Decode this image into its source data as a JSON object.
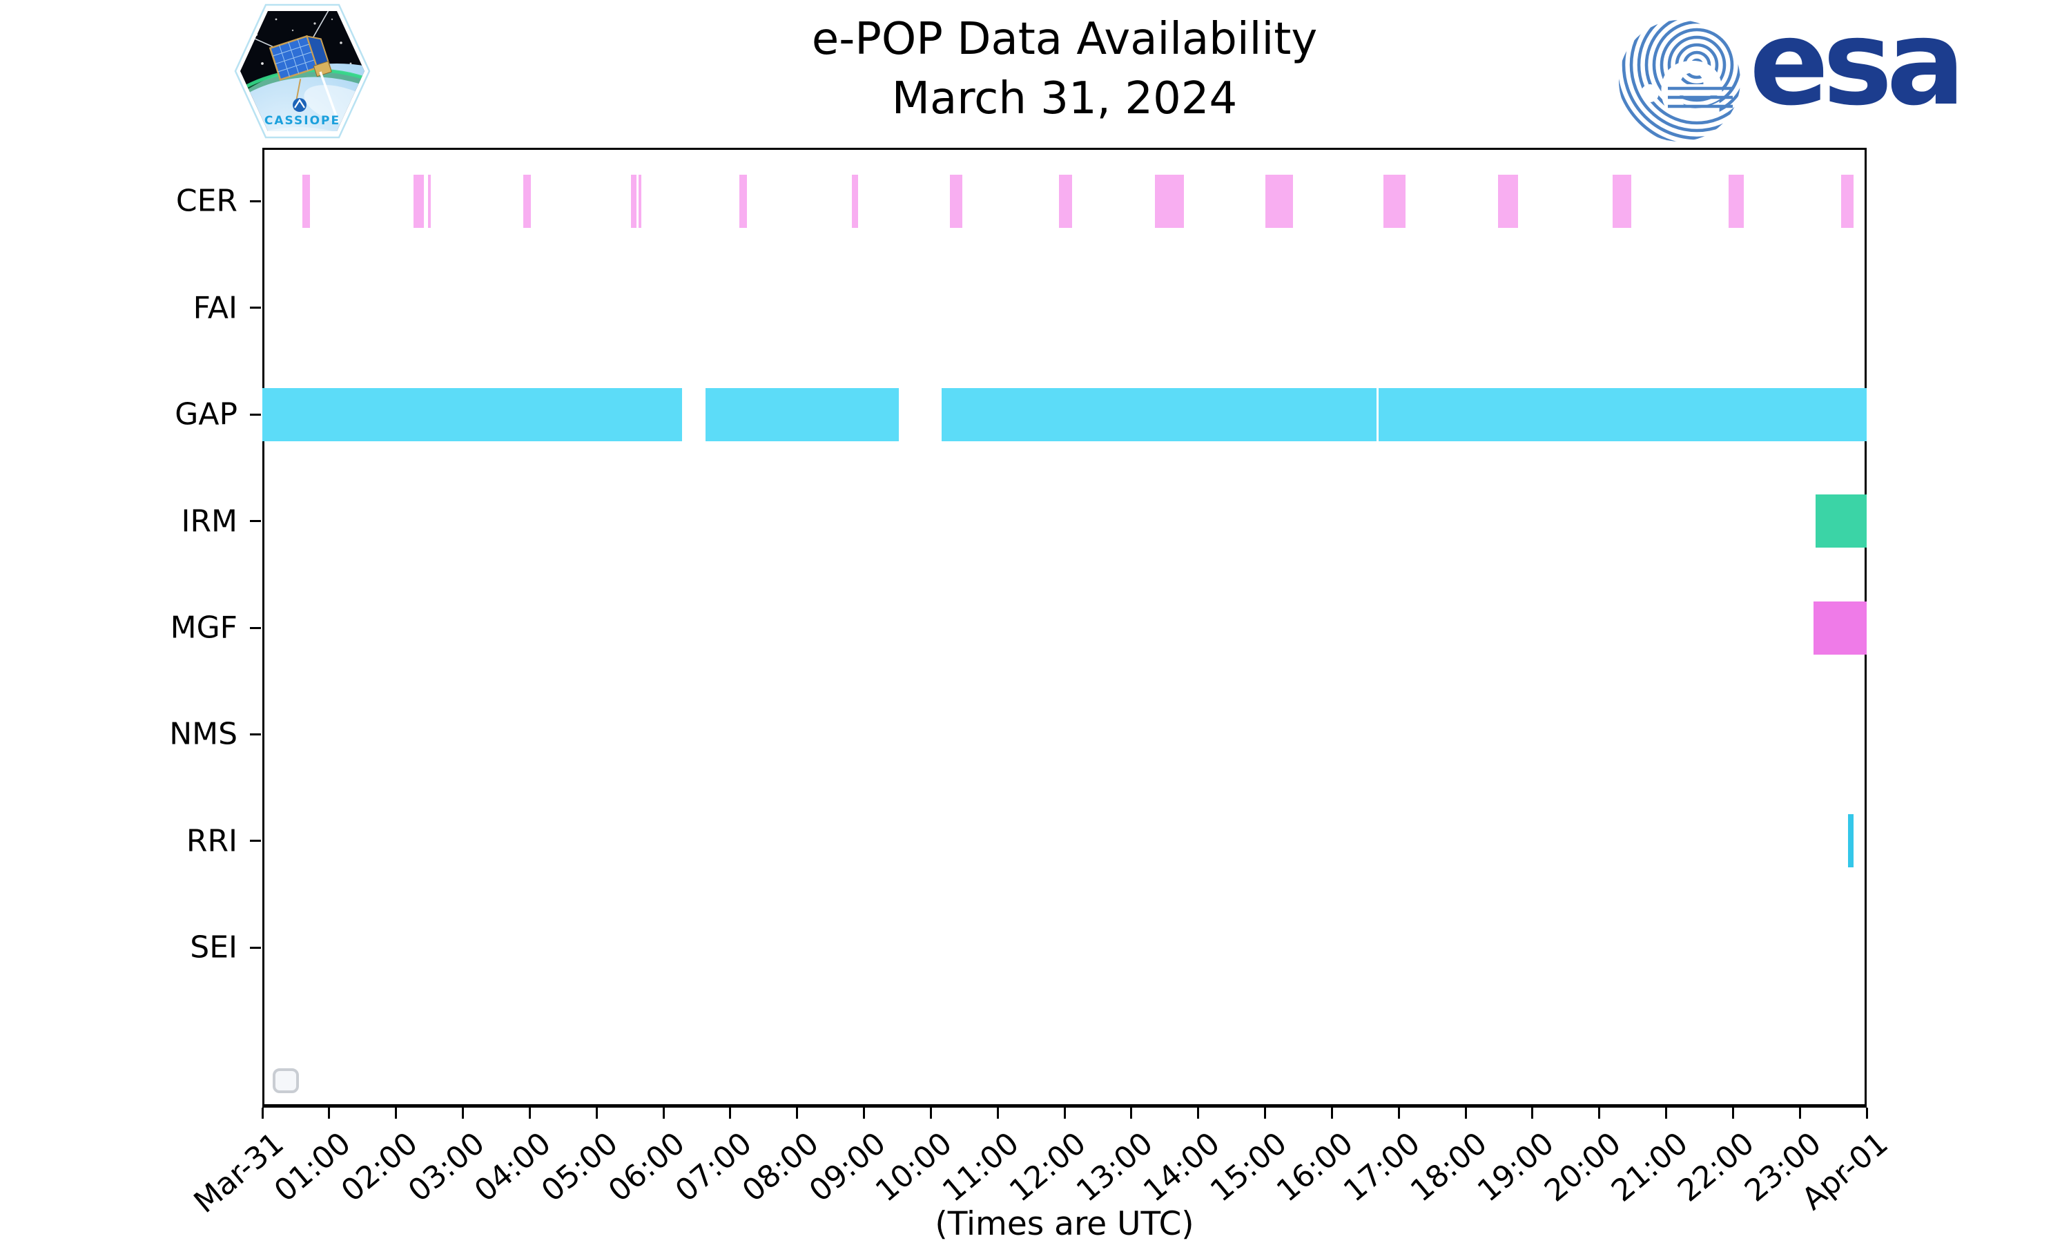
{
  "header": {
    "title_line1": "e-POP Data Availability",
    "title_line2": "March 31, 2024"
  },
  "logos": {
    "cassiope_text": "CASSIOPE",
    "esa_text": "esa"
  },
  "footer": {
    "xlabel": "(Times are UTC)"
  },
  "chart_data": {
    "type": "gantt",
    "title": "e-POP Data Availability",
    "subtitle": "March 31, 2024",
    "xlabel": "(Times are UTC)",
    "x_range": [
      "Mar-31 00:00",
      "Apr-01 00:00"
    ],
    "x_span_hours": 24,
    "grid": false,
    "legend_visible_empty_box": true,
    "x_tick_labels": [
      "Mar-31",
      "01:00",
      "02:00",
      "03:00",
      "04:00",
      "05:00",
      "06:00",
      "07:00",
      "08:00",
      "09:00",
      "10:00",
      "11:00",
      "12:00",
      "13:00",
      "14:00",
      "15:00",
      "16:00",
      "17:00",
      "18:00",
      "19:00",
      "20:00",
      "21:00",
      "22:00",
      "23:00",
      "Apr-01"
    ],
    "instruments": [
      {
        "name": "CER",
        "color": "#f8aef1",
        "intervals": [
          [
            "00:36",
            "00:43"
          ],
          [
            "02:16",
            "02:25"
          ],
          [
            "02:29",
            "02:31"
          ],
          [
            "03:54",
            "04:01"
          ],
          [
            "05:31",
            "05:36"
          ],
          [
            "05:38",
            "05:40"
          ],
          [
            "07:08",
            "07:15"
          ],
          [
            "08:49",
            "08:55"
          ],
          [
            "10:17",
            "10:28"
          ],
          [
            "11:55",
            "12:07"
          ],
          [
            "13:21",
            "13:47"
          ],
          [
            "15:00",
            "15:25"
          ],
          [
            "16:46",
            "17:06"
          ],
          [
            "18:29",
            "18:47"
          ],
          [
            "20:12",
            "20:29"
          ],
          [
            "21:56",
            "22:10"
          ],
          [
            "23:37",
            "23:48"
          ]
        ]
      },
      {
        "name": "FAI",
        "color": null,
        "intervals": []
      },
      {
        "name": "GAP",
        "color": "#5cdcf8",
        "intervals": [
          [
            "00:00",
            "06:17"
          ],
          [
            "06:38",
            "09:31"
          ],
          [
            "10:10",
            "16:40"
          ],
          [
            "16:42",
            "24:00"
          ]
        ]
      },
      {
        "name": "IRM",
        "color": "#3bd4a6",
        "intervals": [
          [
            "23:14",
            "24:00"
          ]
        ]
      },
      {
        "name": "MGF",
        "color": "#ef7be8",
        "intervals": [
          [
            "23:12",
            "24:00"
          ]
        ]
      },
      {
        "name": "NMS",
        "color": null,
        "intervals": []
      },
      {
        "name": "RRI",
        "color": "#34c7e9",
        "intervals": [
          [
            "23:43",
            "23:48"
          ]
        ]
      },
      {
        "name": "SEI",
        "color": null,
        "intervals": []
      }
    ]
  }
}
